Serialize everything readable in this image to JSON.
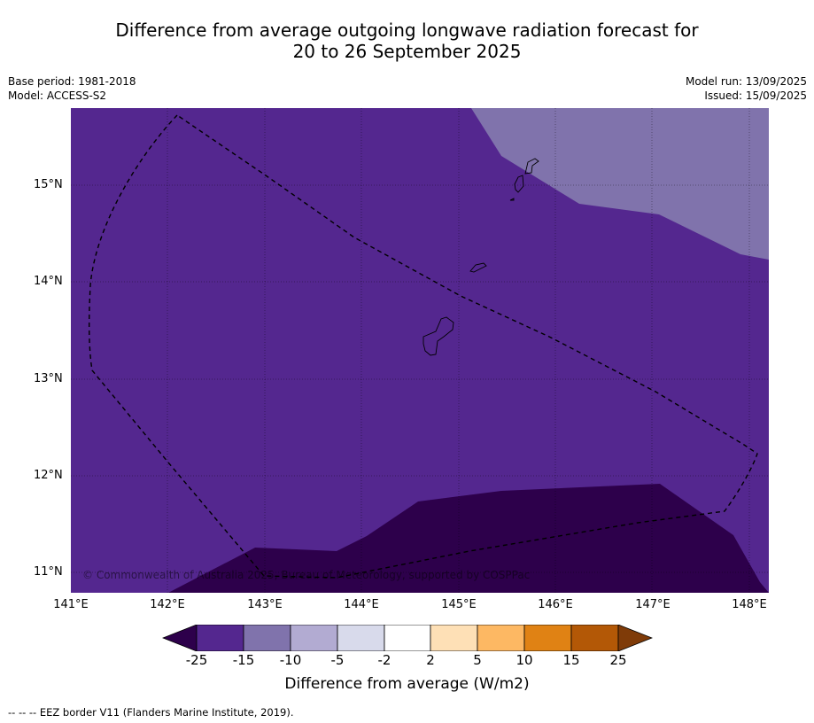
{
  "title_line1": "Difference from average outgoing longwave radiation forecast for",
  "title_line2": "20 to 26 September 2025",
  "meta": {
    "base_period": "Base period: 1981-2018",
    "model": "Model: ACCESS-S2",
    "model_run": "Model run: 13/09/2025",
    "issued": "Issued: 15/09/2025"
  },
  "map": {
    "lat_labels": [
      "15°N",
      "14°N",
      "13°N",
      "12°N",
      "11°N"
    ],
    "lon_labels": [
      "141°E",
      "142°E",
      "143°E",
      "144°E",
      "145°E",
      "146°E",
      "147°E",
      "148°E"
    ],
    "copyright": "© Commonwealth of Australia 2025, Bureau of Meteorology, supported by COSPPac",
    "colors": {
      "background_fill": "#54278f",
      "light_fill": "#8073ac",
      "dark_fill": "#2d004b"
    }
  },
  "colorbar": {
    "tick_labels": [
      "-25",
      "-15",
      "-10",
      "-5",
      "-2",
      "2",
      "5",
      "10",
      "15",
      "25"
    ],
    "colors": [
      "#2d004b",
      "#54278f",
      "#8073ac",
      "#b2abd2",
      "#d8daeb",
      "#ffffff",
      "#fee0b6",
      "#fdb863",
      "#e08214",
      "#b35806",
      "#7f3b08"
    ],
    "label": "Difference from average (W/m2)"
  },
  "footnote": "--  --  -- EEZ border V11 (Flanders Marine Institute, 2019)."
}
